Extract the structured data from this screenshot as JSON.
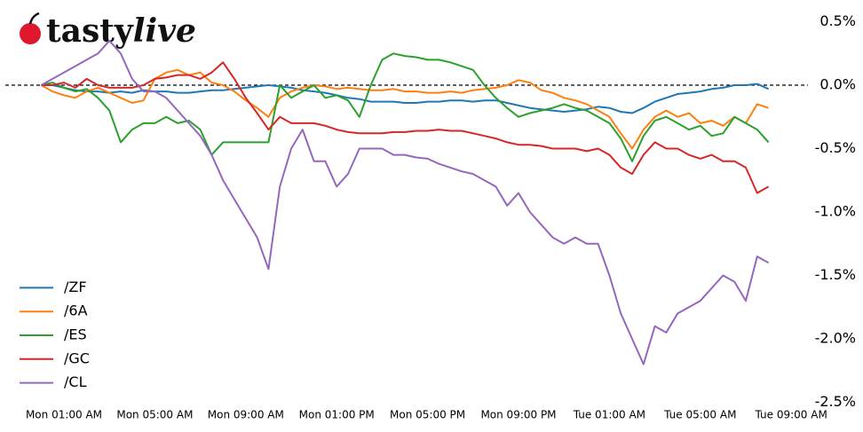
{
  "brand": [
    "tasty",
    "live"
  ],
  "chart_data": {
    "type": "line",
    "categories": [
      null,
      null,
      "Mon 01:00 AM",
      null,
      null,
      null,
      null,
      null,
      null,
      null,
      "Mon 05:00 AM",
      null,
      null,
      null,
      null,
      null,
      null,
      null,
      "Mon 09:00 AM",
      null,
      null,
      null,
      null,
      null,
      null,
      null,
      "Mon 01:00 PM",
      null,
      null,
      null,
      null,
      null,
      null,
      null,
      "Mon 05:00 PM",
      null,
      null,
      null,
      null,
      null,
      null,
      null,
      "Mon 09:00 PM",
      null,
      null,
      null,
      null,
      null,
      null,
      null,
      "Tue 01:00 AM",
      null,
      null,
      null,
      null,
      null,
      null,
      null,
      "Tue 05:00 AM",
      null,
      null,
      null,
      null,
      null,
      null,
      null,
      "Tue 09:00 AM"
    ],
    "series": [
      {
        "name": "/ZF",
        "color": "#1f77b4",
        "values": [
          0,
          0,
          -0.02,
          -0.04,
          -0.05,
          -0.05,
          -0.06,
          -0.05,
          -0.06,
          -0.04,
          -0.05,
          -0.05,
          -0.06,
          -0.06,
          -0.05,
          -0.04,
          -0.04,
          -0.03,
          -0.02,
          -0.01,
          0,
          -0.01,
          -0.02,
          -0.04,
          -0.05,
          -0.06,
          -0.08,
          -0.1,
          -0.11,
          -0.13,
          -0.13,
          -0.13,
          -0.14,
          -0.14,
          -0.13,
          -0.13,
          -0.12,
          -0.12,
          -0.13,
          -0.12,
          -0.12,
          -0.14,
          -0.16,
          -0.18,
          -0.19,
          -0.2,
          -0.21,
          -0.2,
          -0.19,
          -0.17,
          -0.18,
          -0.21,
          -0.22,
          -0.18,
          -0.13,
          -0.1,
          -0.07,
          -0.06,
          -0.05,
          -0.03,
          -0.02,
          0,
          0,
          0.01,
          -0.03,
          null,
          null
        ]
      },
      {
        "name": "/6A",
        "color": "#ff7f0e",
        "values": [
          0,
          -0.05,
          -0.08,
          -0.1,
          -0.05,
          -0.02,
          -0.06,
          -0.1,
          -0.14,
          -0.12,
          0.05,
          0.1,
          0.12,
          0.08,
          0.1,
          0.02,
          0,
          -0.05,
          -0.12,
          -0.18,
          -0.25,
          -0.1,
          -0.05,
          -0.02,
          0,
          -0.01,
          -0.03,
          -0.02,
          -0.03,
          -0.04,
          -0.04,
          -0.03,
          -0.05,
          -0.05,
          -0.06,
          -0.06,
          -0.05,
          -0.06,
          -0.04,
          -0.03,
          -0.02,
          0,
          0.04,
          0.02,
          -0.04,
          -0.06,
          -0.1,
          -0.12,
          -0.15,
          -0.2,
          -0.25,
          -0.38,
          -0.5,
          -0.35,
          -0.25,
          -0.2,
          -0.25,
          -0.22,
          -0.3,
          -0.28,
          -0.32,
          -0.25,
          -0.3,
          -0.15,
          -0.18,
          null,
          null
        ]
      },
      {
        "name": "/ES",
        "color": "#2ca02c",
        "values": [
          0,
          0.02,
          -0.02,
          -0.05,
          -0.03,
          -0.1,
          -0.2,
          -0.45,
          -0.35,
          -0.3,
          -0.3,
          -0.25,
          -0.3,
          -0.28,
          -0.35,
          -0.55,
          -0.45,
          -0.45,
          -0.45,
          -0.45,
          -0.45,
          0,
          -0.1,
          -0.05,
          0,
          -0.1,
          -0.08,
          -0.12,
          -0.25,
          0,
          0.2,
          0.25,
          0.23,
          0.22,
          0.2,
          0.2,
          0.18,
          0.15,
          0.12,
          0,
          -0.1,
          -0.18,
          -0.25,
          -0.22,
          -0.2,
          -0.18,
          -0.15,
          -0.18,
          -0.2,
          -0.25,
          -0.3,
          -0.42,
          -0.6,
          -0.4,
          -0.28,
          -0.25,
          -0.3,
          -0.35,
          -0.32,
          -0.4,
          -0.38,
          -0.25,
          -0.3,
          -0.35,
          -0.45,
          null,
          null
        ]
      },
      {
        "name": "/GC",
        "color": "#d62728",
        "values": [
          0,
          0,
          0.02,
          -0.02,
          0.05,
          0,
          -0.02,
          -0.02,
          -0.02,
          0,
          0.05,
          0.06,
          0.08,
          0.08,
          0.05,
          0.1,
          0.18,
          0.05,
          -0.1,
          -0.22,
          -0.35,
          -0.25,
          -0.3,
          -0.3,
          -0.3,
          -0.32,
          -0.35,
          -0.37,
          -0.38,
          -0.38,
          -0.38,
          -0.37,
          -0.37,
          -0.36,
          -0.36,
          -0.35,
          -0.36,
          -0.36,
          -0.38,
          -0.4,
          -0.42,
          -0.45,
          -0.47,
          -0.47,
          -0.48,
          -0.5,
          -0.5,
          -0.5,
          -0.52,
          -0.5,
          -0.55,
          -0.65,
          -0.7,
          -0.55,
          -0.45,
          -0.5,
          -0.5,
          -0.55,
          -0.58,
          -0.55,
          -0.6,
          -0.6,
          -0.65,
          -0.85,
          -0.8,
          null,
          null
        ]
      },
      {
        "name": "/CL",
        "color": "#9467bd",
        "values": [
          0,
          0.05,
          0.1,
          0.15,
          0.2,
          0.25,
          0.35,
          0.25,
          0.05,
          -0.05,
          -0.05,
          -0.1,
          -0.2,
          -0.3,
          -0.4,
          -0.55,
          -0.75,
          -0.9,
          -1.05,
          -1.2,
          -1.45,
          -0.8,
          -0.5,
          -0.35,
          -0.6,
          -0.6,
          -0.8,
          -0.7,
          -0.5,
          -0.5,
          -0.5,
          -0.55,
          -0.55,
          -0.57,
          -0.58,
          -0.62,
          -0.65,
          -0.68,
          -0.7,
          -0.75,
          -0.8,
          -0.95,
          -0.85,
          -1.0,
          -1.1,
          -1.2,
          -1.25,
          -1.2,
          -1.25,
          -1.25,
          -1.5,
          -1.8,
          -2.0,
          -2.2,
          -1.9,
          -1.95,
          -1.8,
          -1.75,
          -1.7,
          -1.6,
          -1.5,
          -1.55,
          -1.7,
          -1.35,
          -1.4,
          null,
          null
        ]
      }
    ],
    "ylim": [
      -2.5,
      0.5
    ],
    "yticks": [
      {
        "value": 0.5,
        "label": "0.5%"
      },
      {
        "value": 0,
        "label": "0.0%"
      },
      {
        "value": -0.5,
        "label": "-0.5%"
      },
      {
        "value": -1.0,
        "label": "-1.0%"
      },
      {
        "value": -1.5,
        "label": "-1.5%"
      },
      {
        "value": -2.0,
        "label": "-2.0%"
      },
      {
        "value": -2.5,
        "label": "-2.5%"
      }
    ],
    "hline": 0,
    "grid": false,
    "legend": "lower left"
  }
}
